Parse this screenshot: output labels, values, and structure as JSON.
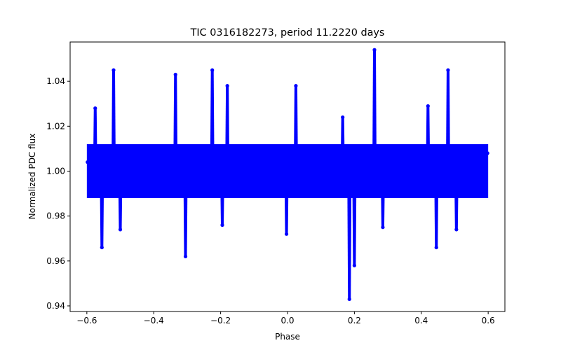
{
  "chart_data": {
    "type": "scatter",
    "title": "TIC 0316182273, period 11.2220 days",
    "xlabel": "Phase",
    "ylabel": "Normalized PDC flux",
    "xlim": [
      -0.65,
      0.65
    ],
    "ylim": [
      0.9375,
      1.0575
    ],
    "grid": false,
    "legend": "none",
    "marker_color": "#0000ff",
    "x_ticks": [
      -0.6,
      -0.4,
      -0.2,
      0.0,
      0.2,
      0.4,
      0.6
    ],
    "x_tick_labels": [
      "−0.6",
      "−0.4",
      "−0.2",
      "0.0",
      "0.2",
      "0.4",
      "0.6"
    ],
    "y_ticks": [
      0.94,
      0.96,
      0.98,
      1.0,
      1.02,
      1.04
    ],
    "y_tick_labels": [
      "0.94",
      "0.96",
      "0.98",
      "1.00",
      "1.02",
      "1.04"
    ],
    "x_range": [
      -0.6,
      0.6
    ],
    "baseline": 1.0,
    "scatter_band": [
      0.988,
      1.012
    ],
    "features": [
      {
        "phase": -0.575,
        "y": 1.028
      },
      {
        "phase": -0.555,
        "y": 0.966
      },
      {
        "phase": -0.52,
        "y": 1.045
      },
      {
        "phase": -0.5,
        "y": 0.974
      },
      {
        "phase": -0.335,
        "y": 1.043
      },
      {
        "phase": -0.305,
        "y": 0.962
      },
      {
        "phase": -0.225,
        "y": 1.045
      },
      {
        "phase": -0.195,
        "y": 0.976
      },
      {
        "phase": -0.18,
        "y": 1.038
      },
      {
        "phase": -0.003,
        "y": 0.972
      },
      {
        "phase": 0.025,
        "y": 1.038
      },
      {
        "phase": 0.165,
        "y": 1.024
      },
      {
        "phase": 0.185,
        "y": 0.943
      },
      {
        "phase": 0.2,
        "y": 0.958
      },
      {
        "phase": 0.26,
        "y": 1.054
      },
      {
        "phase": 0.285,
        "y": 0.975
      },
      {
        "phase": 0.42,
        "y": 1.029
      },
      {
        "phase": 0.445,
        "y": 0.966
      },
      {
        "phase": 0.48,
        "y": 1.045
      },
      {
        "phase": 0.505,
        "y": 0.974
      }
    ],
    "points": [
      [
        -0.598,
        1.004
      ],
      [
        -0.59,
        0.996
      ],
      [
        -0.58,
        1.009
      ],
      [
        -0.57,
        0.992
      ],
      [
        -0.56,
        1.006
      ],
      [
        -0.55,
        0.994
      ],
      [
        -0.54,
        1.008
      ],
      [
        -0.53,
        0.991
      ],
      [
        -0.51,
        1.007
      ],
      [
        -0.49,
        0.993
      ],
      [
        -0.48,
        1.005
      ],
      [
        -0.47,
        0.995
      ],
      [
        -0.46,
        1.009
      ],
      [
        -0.45,
        0.99
      ],
      [
        -0.44,
        1.006
      ],
      [
        -0.43,
        0.992
      ],
      [
        -0.42,
        1.008
      ],
      [
        -0.41,
        0.994
      ],
      [
        -0.4,
        1.005
      ],
      [
        -0.39,
        0.993
      ],
      [
        -0.38,
        1.009
      ],
      [
        -0.37,
        0.991
      ],
      [
        -0.36,
        1.007
      ],
      [
        -0.35,
        0.994
      ],
      [
        -0.32,
        1.008
      ],
      [
        -0.29,
        0.992
      ],
      [
        -0.28,
        1.006
      ],
      [
        -0.27,
        0.991
      ],
      [
        -0.26,
        1.009
      ],
      [
        -0.25,
        0.993
      ],
      [
        -0.24,
        1.005
      ],
      [
        -0.21,
        0.99
      ],
      [
        -0.17,
        1.008
      ],
      [
        -0.16,
        0.993
      ],
      [
        -0.15,
        1.006
      ],
      [
        -0.14,
        0.992
      ],
      [
        -0.13,
        1.009
      ],
      [
        -0.12,
        0.994
      ],
      [
        -0.11,
        1.005
      ],
      [
        -0.1,
        0.991
      ],
      [
        -0.09,
        1.008
      ],
      [
        -0.08,
        0.993
      ],
      [
        -0.07,
        1.006
      ],
      [
        -0.06,
        0.992
      ],
      [
        -0.05,
        1.009
      ],
      [
        -0.04,
        0.995
      ],
      [
        -0.03,
        1.004
      ],
      [
        -0.02,
        0.992
      ],
      [
        -0.01,
        1.008
      ],
      [
        0.01,
        0.994
      ],
      [
        0.02,
        1.006
      ],
      [
        0.03,
        0.991
      ],
      [
        0.04,
        1.009
      ],
      [
        0.05,
        0.993
      ],
      [
        0.06,
        1.006
      ],
      [
        0.07,
        0.992
      ],
      [
        0.08,
        1.008
      ],
      [
        0.09,
        0.994
      ],
      [
        0.1,
        1.005
      ],
      [
        0.11,
        0.991
      ],
      [
        0.12,
        1.009
      ],
      [
        0.13,
        0.993
      ],
      [
        0.14,
        1.006
      ],
      [
        0.15,
        0.992
      ],
      [
        0.16,
        1.008
      ],
      [
        0.17,
        0.99
      ],
      [
        0.19,
        1.004
      ],
      [
        0.21,
        0.993
      ],
      [
        0.22,
        1.009
      ],
      [
        0.23,
        0.991
      ],
      [
        0.24,
        1.007
      ],
      [
        0.25,
        0.994
      ],
      [
        0.27,
        1.006
      ],
      [
        0.28,
        0.99
      ],
      [
        0.3,
        1.008
      ],
      [
        0.31,
        0.992
      ],
      [
        0.32,
        1.006
      ],
      [
        0.33,
        0.991
      ],
      [
        0.34,
        1.009
      ],
      [
        0.35,
        0.993
      ],
      [
        0.36,
        1.005
      ],
      [
        0.37,
        0.992
      ],
      [
        0.38,
        1.008
      ],
      [
        0.39,
        0.994
      ],
      [
        0.4,
        1.006
      ],
      [
        0.41,
        0.99
      ],
      [
        0.43,
        1.007
      ],
      [
        0.46,
        0.992
      ],
      [
        0.47,
        1.009
      ],
      [
        0.49,
        0.993
      ],
      [
        0.5,
        1.006
      ],
      [
        0.51,
        0.992
      ],
      [
        0.52,
        1.008
      ],
      [
        0.53,
        0.994
      ],
      [
        0.54,
        1.006
      ],
      [
        0.55,
        0.991
      ],
      [
        0.56,
        1.009
      ],
      [
        0.57,
        0.993
      ],
      [
        0.58,
        1.005
      ],
      [
        0.59,
        0.992
      ],
      [
        0.598,
        1.008
      ]
    ]
  }
}
